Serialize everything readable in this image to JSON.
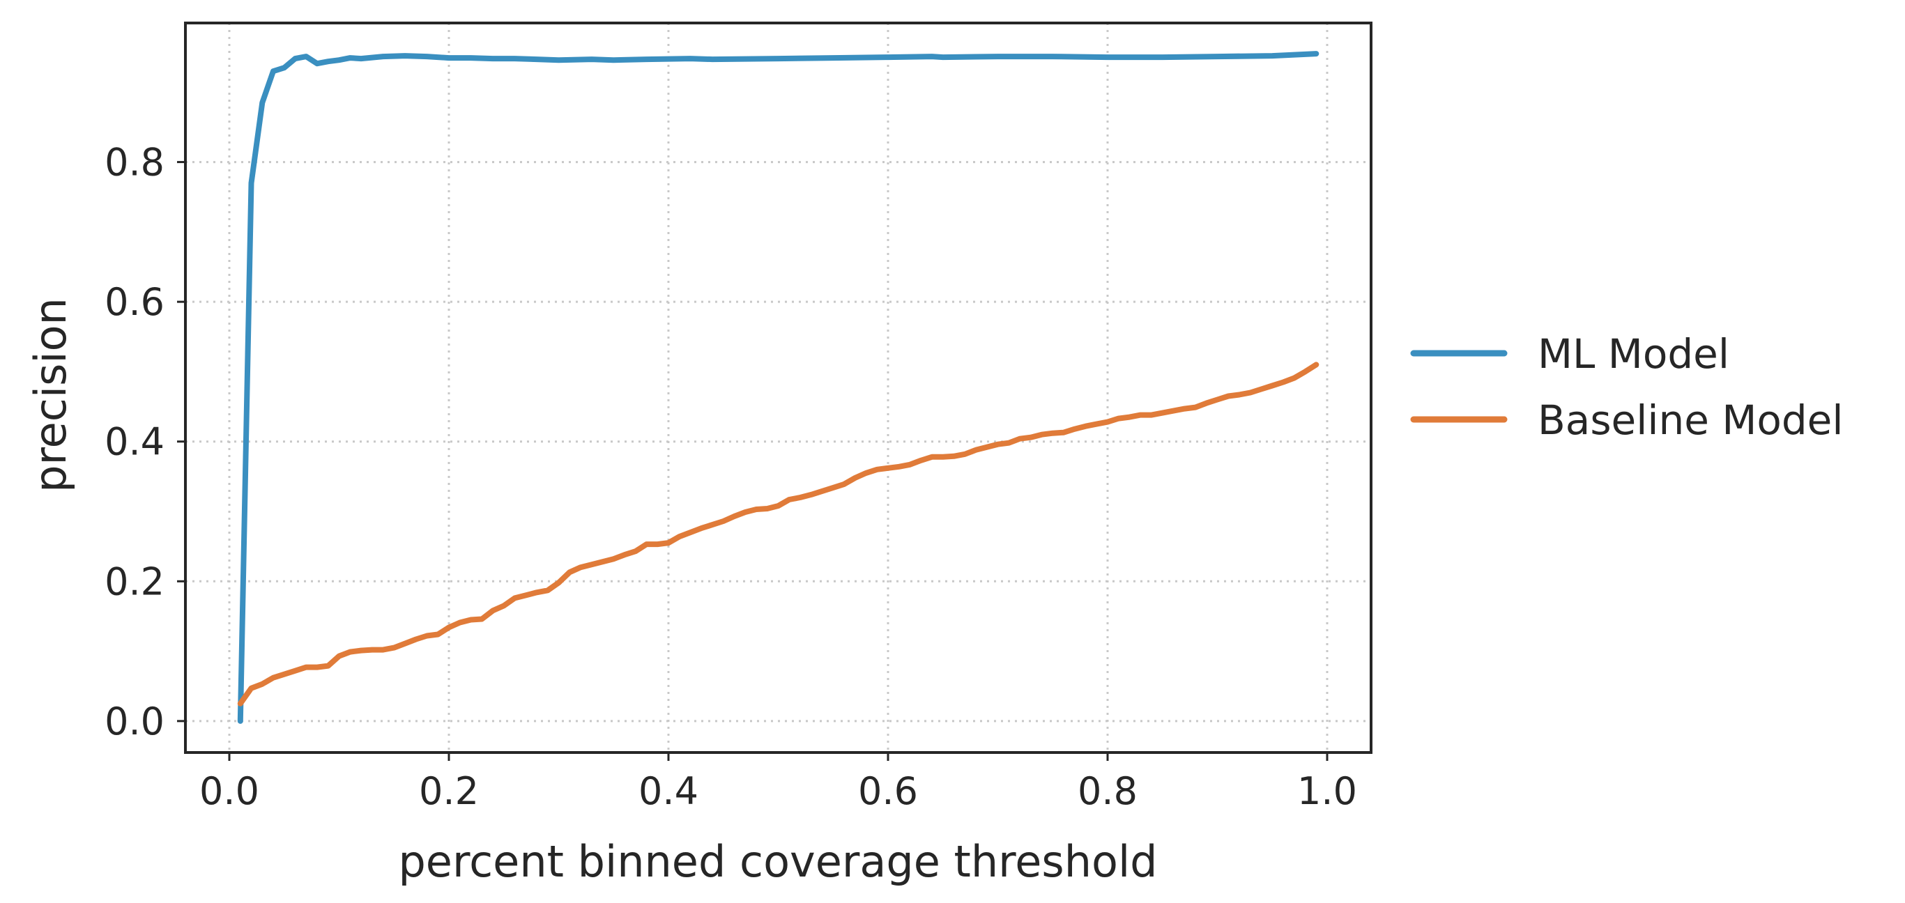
{
  "chart_data": {
    "type": "line",
    "xlabel": "percent binned coverage threshold",
    "ylabel": "precision",
    "xlim": [
      -0.04,
      1.04
    ],
    "ylim": [
      -0.045,
      0.999
    ],
    "xticks": [
      0.0,
      0.2,
      0.4,
      0.6,
      0.8,
      1.0
    ],
    "xtick_labels": [
      "0.0",
      "0.2",
      "0.4",
      "0.6",
      "0.8",
      "1.0"
    ],
    "yticks": [
      0.0,
      0.2,
      0.4,
      0.6,
      0.8
    ],
    "ytick_labels": [
      "0.0",
      "0.2",
      "0.4",
      "0.6",
      "0.8"
    ],
    "grid": true,
    "legend_position": "outside-right",
    "series": [
      {
        "name": "ML Model",
        "color": "#3a8fc0",
        "x": [
          0.01,
          0.02,
          0.03,
          0.04,
          0.05,
          0.06,
          0.07,
          0.08,
          0.09,
          0.1,
          0.11,
          0.12,
          0.14,
          0.16,
          0.18,
          0.2,
          0.22,
          0.24,
          0.26,
          0.28,
          0.3,
          0.33,
          0.35,
          0.38,
          0.42,
          0.44,
          0.5,
          0.55,
          0.6,
          0.64,
          0.65,
          0.7,
          0.75,
          0.8,
          0.85,
          0.9,
          0.95,
          0.99
        ],
        "y": [
          0.0,
          0.77,
          0.885,
          0.93,
          0.935,
          0.948,
          0.951,
          0.941,
          0.944,
          0.946,
          0.949,
          0.948,
          0.951,
          0.952,
          0.951,
          0.949,
          0.949,
          0.948,
          0.948,
          0.947,
          0.946,
          0.947,
          0.946,
          0.947,
          0.948,
          0.947,
          0.948,
          0.949,
          0.95,
          0.951,
          0.95,
          0.951,
          0.951,
          0.95,
          0.95,
          0.951,
          0.952,
          0.955
        ]
      },
      {
        "name": "Baseline Model",
        "color": "#e07b39",
        "x": [
          0.01,
          0.02,
          0.03,
          0.04,
          0.05,
          0.06,
          0.07,
          0.08,
          0.09,
          0.1,
          0.11,
          0.12,
          0.13,
          0.14,
          0.15,
          0.16,
          0.17,
          0.18,
          0.19,
          0.2,
          0.21,
          0.22,
          0.23,
          0.24,
          0.25,
          0.26,
          0.27,
          0.28,
          0.29,
          0.3,
          0.31,
          0.32,
          0.33,
          0.34,
          0.35,
          0.36,
          0.37,
          0.38,
          0.39,
          0.4,
          0.41,
          0.42,
          0.43,
          0.44,
          0.45,
          0.46,
          0.47,
          0.48,
          0.49,
          0.5,
          0.51,
          0.52,
          0.53,
          0.54,
          0.55,
          0.56,
          0.57,
          0.58,
          0.59,
          0.6,
          0.61,
          0.62,
          0.63,
          0.64,
          0.65,
          0.66,
          0.67,
          0.68,
          0.69,
          0.7,
          0.71,
          0.72,
          0.73,
          0.74,
          0.75,
          0.76,
          0.77,
          0.78,
          0.79,
          0.8,
          0.81,
          0.82,
          0.83,
          0.84,
          0.85,
          0.86,
          0.87,
          0.88,
          0.89,
          0.9,
          0.91,
          0.92,
          0.93,
          0.94,
          0.95,
          0.96,
          0.97,
          0.98,
          0.99
        ],
        "y": [
          0.025,
          0.047,
          0.053,
          0.062,
          0.067,
          0.072,
          0.077,
          0.077,
          0.079,
          0.093,
          0.099,
          0.101,
          0.102,
          0.102,
          0.105,
          0.111,
          0.117,
          0.122,
          0.124,
          0.134,
          0.141,
          0.145,
          0.146,
          0.158,
          0.165,
          0.176,
          0.18,
          0.184,
          0.187,
          0.198,
          0.213,
          0.22,
          0.224,
          0.228,
          0.232,
          0.238,
          0.243,
          0.253,
          0.253,
          0.255,
          0.264,
          0.27,
          0.276,
          0.281,
          0.286,
          0.293,
          0.299,
          0.303,
          0.304,
          0.308,
          0.317,
          0.32,
          0.324,
          0.329,
          0.334,
          0.339,
          0.348,
          0.355,
          0.36,
          0.362,
          0.364,
          0.367,
          0.373,
          0.378,
          0.378,
          0.379,
          0.382,
          0.388,
          0.392,
          0.396,
          0.398,
          0.404,
          0.406,
          0.41,
          0.412,
          0.413,
          0.418,
          0.422,
          0.425,
          0.428,
          0.433,
          0.435,
          0.438,
          0.438,
          0.441,
          0.444,
          0.447,
          0.449,
          0.455,
          0.46,
          0.465,
          0.467,
          0.47,
          0.475,
          0.48,
          0.485,
          0.491,
          0.5,
          0.51
        ]
      }
    ]
  }
}
